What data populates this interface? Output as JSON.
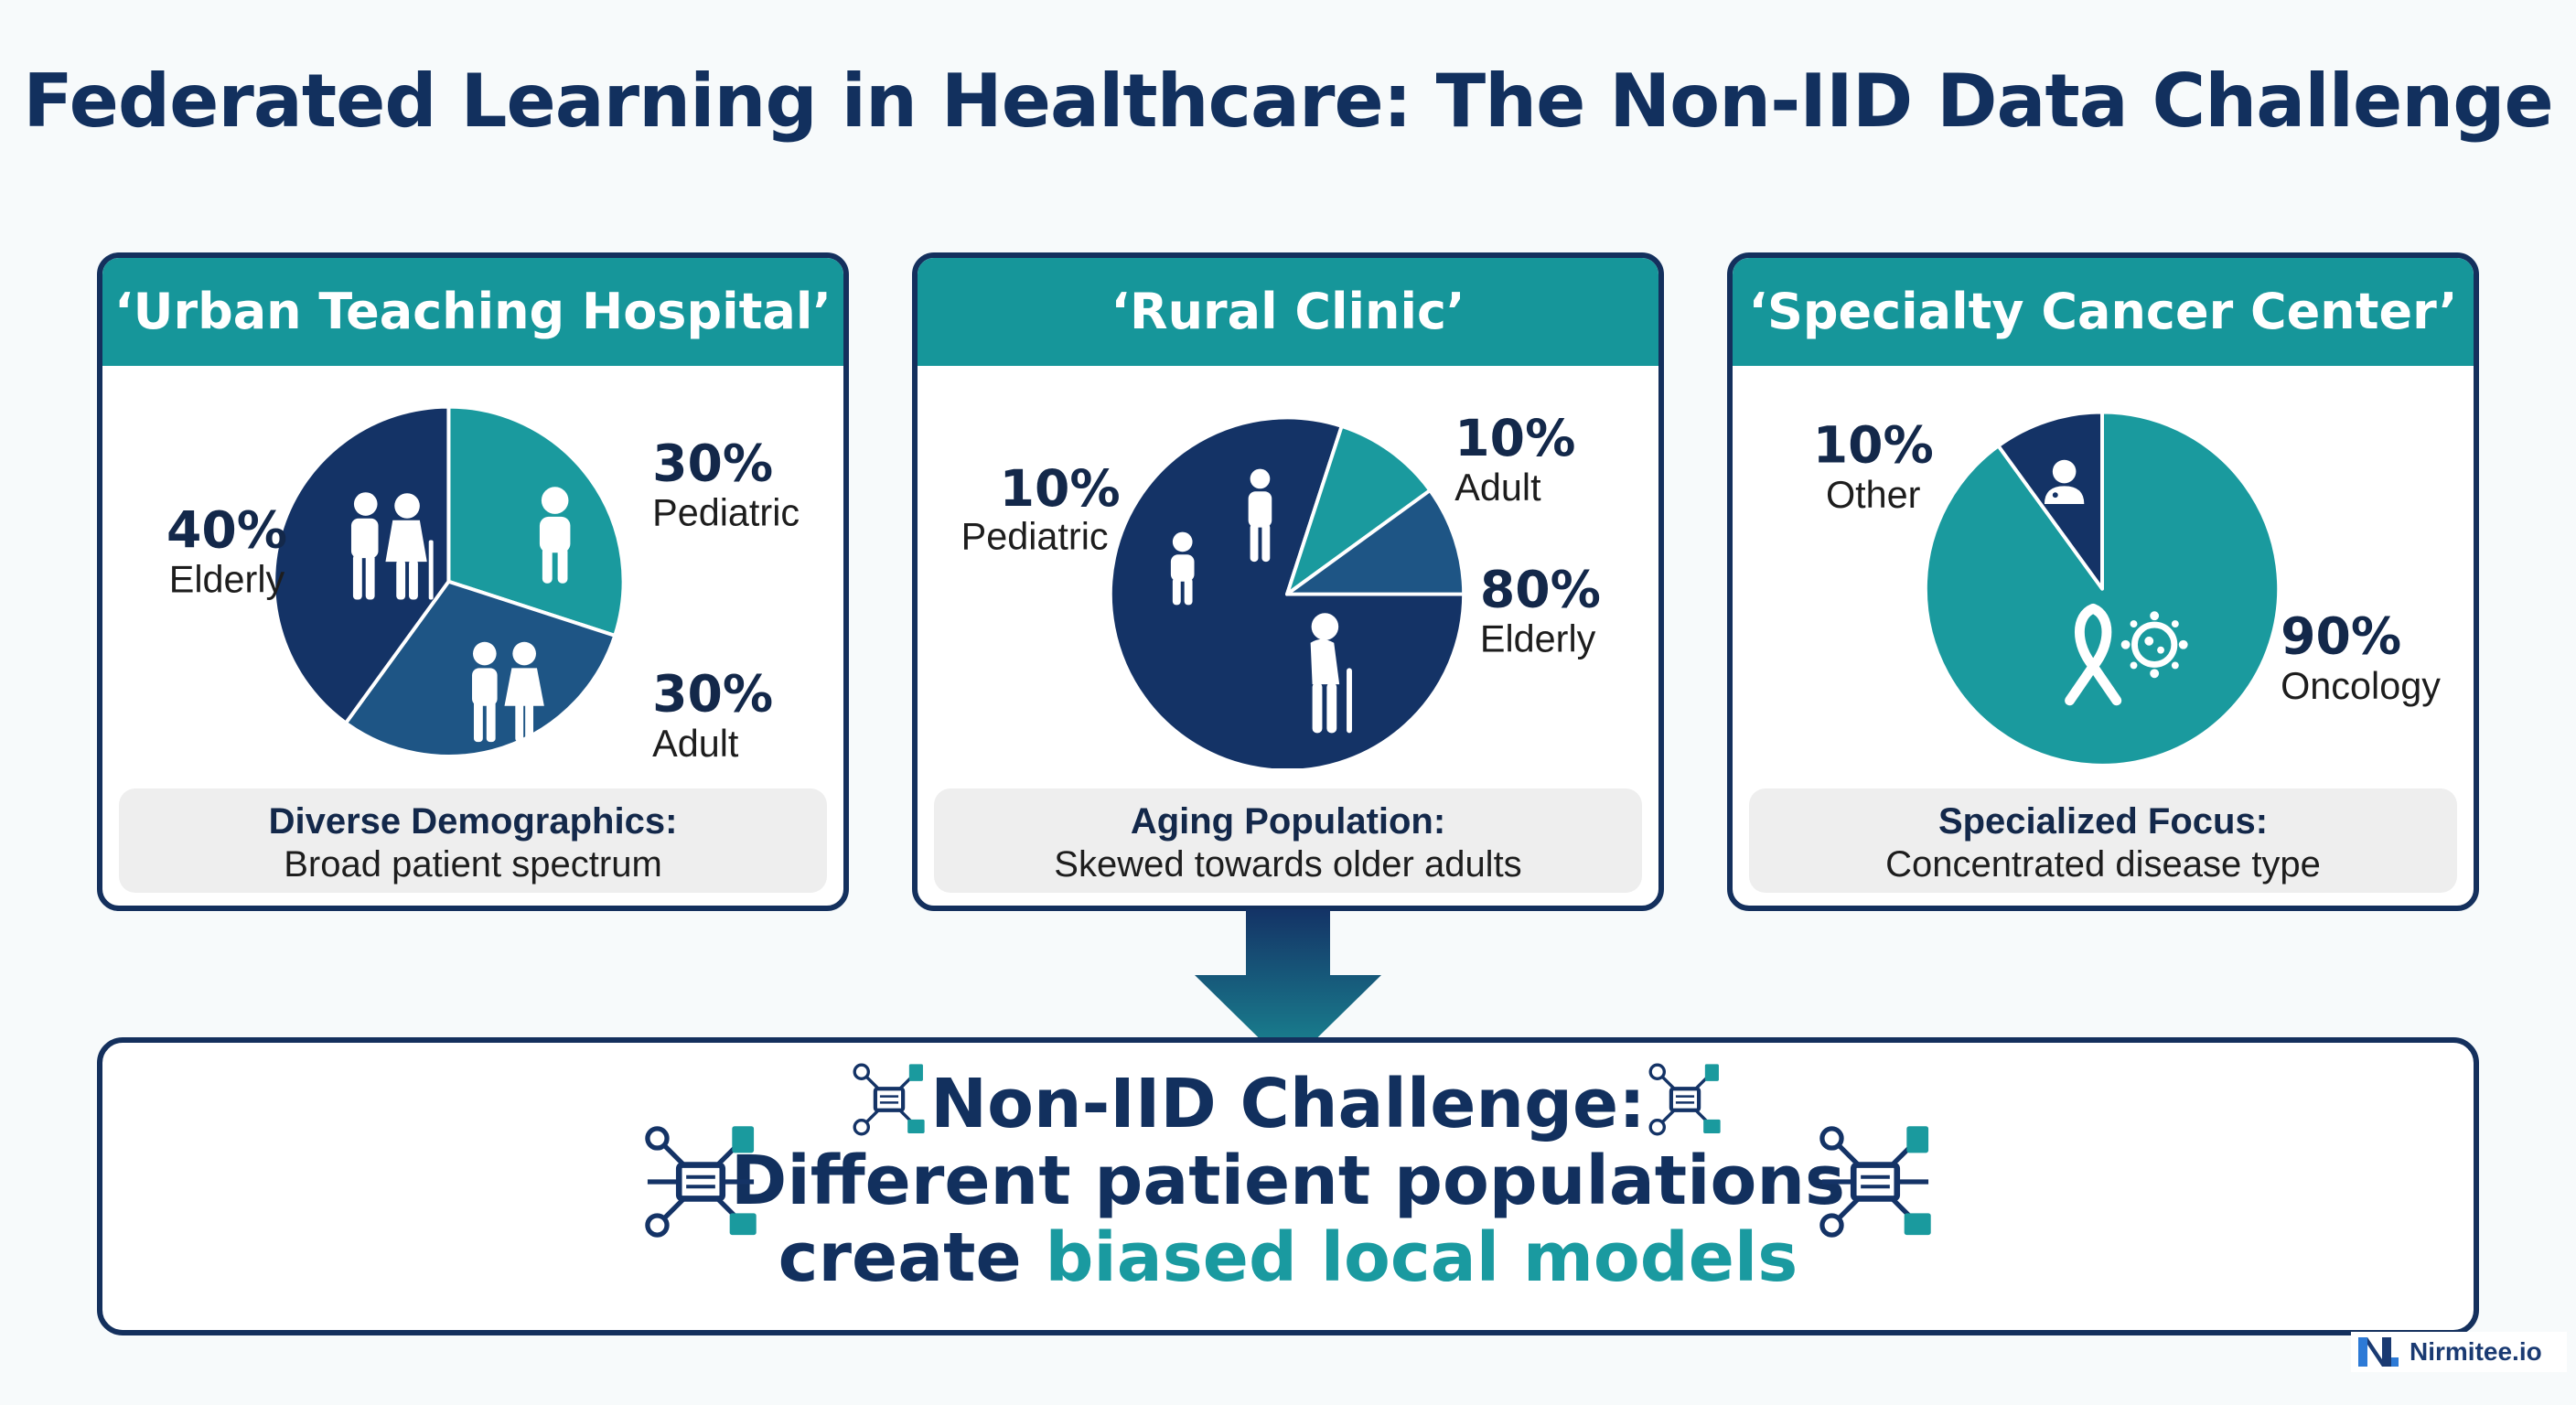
{
  "title": "Federated Learning in Healthcare: The Non-IID Data Challenge",
  "colors": {
    "navy": "#143366",
    "teal": "#1a9a9e",
    "mid": "#1e5585",
    "header": "#16969a",
    "frame": "#14305d"
  },
  "chart_data": [
    {
      "type": "pie",
      "title": "‘Urban Teaching Hospital’",
      "slices": [
        {
          "label": "Pediatric",
          "percent_label": "30%",
          "value": 30,
          "color": "#1a9a9e",
          "icon": "child-icon"
        },
        {
          "label": "Adult",
          "percent_label": "30%",
          "value": 30,
          "color": "#1e5585",
          "icon": "adults-couple-icon"
        },
        {
          "label": "Elderly",
          "percent_label": "40%",
          "value": 40,
          "color": "#143366",
          "icon": "elderly-couple-icon"
        }
      ],
      "caption": {
        "title": "Diverse Demographics:",
        "subtitle": "Broad patient spectrum"
      }
    },
    {
      "type": "pie",
      "title": "‘Rural Clinic’",
      "slices": [
        {
          "label": "Elderly",
          "percent_label": "80%",
          "value": 80,
          "color": "#143366",
          "icon": "elderly-person-icon"
        },
        {
          "label": "Pediatric",
          "percent_label": "10%",
          "value": 10,
          "color": "#1a9a9e",
          "icon": "child-icon"
        },
        {
          "label": "Adult",
          "percent_label": "10%",
          "value": 10,
          "color": "#1e5585",
          "icon": "adult-icon"
        }
      ],
      "caption": {
        "title": "Aging Population:",
        "subtitle": "Skewed towards older adults"
      }
    },
    {
      "type": "pie",
      "title": "‘Specialty Cancer Center’",
      "slices": [
        {
          "label": "Oncology",
          "percent_label": "90%",
          "value": 90,
          "color": "#1a9a9e",
          "icon": "cancer-ribbon-icon"
        },
        {
          "label": "Other",
          "percent_label": "10%",
          "value": 10,
          "color": "#143366",
          "icon": "doctor-icon"
        }
      ],
      "caption": {
        "title": "Specialized Focus:",
        "subtitle": "Concentrated disease type"
      }
    }
  ],
  "challenge": {
    "line1": "Non-IID Challenge:",
    "line2": "Different patient populations",
    "line3_plain": "create ",
    "line3_accent": "biased local models"
  },
  "brand": {
    "name": "Nirmitee.io"
  }
}
